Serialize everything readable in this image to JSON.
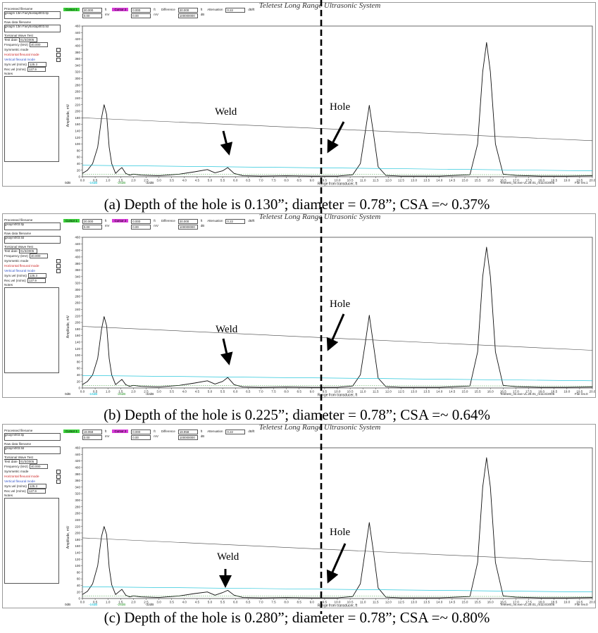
{
  "app_title": "Teletest Long Range Ultrasonic System",
  "annotations": {
    "weld": "Weld",
    "hole": "Hole"
  },
  "common_axes": {
    "xlabel": "Range from transducer, ft",
    "ylabel": "Amplitude, mV",
    "xlim": [
      0.0,
      20.0
    ],
    "ylim": [
      0,
      460
    ],
    "xticks": [
      "0.0",
      "0.5",
      "1.0",
      "1.5",
      "2.0",
      "2.5",
      "3.0",
      "3.5",
      "4.0",
      "4.5",
      "5.0",
      "5.5",
      "6.0",
      "6.5",
      "7.0",
      "7.5",
      "8.0",
      "8.5",
      "9.0",
      "9.5",
      "10.0",
      "10.5",
      "11.0",
      "11.5",
      "12.0",
      "12.5",
      "13.0",
      "13.5",
      "14.0",
      "14.5",
      "15.0",
      "15.5",
      "16.0",
      "16.5",
      "17.0",
      "17.5",
      "18.0",
      "18.5",
      "19.0",
      "19.5",
      "20.0"
    ],
    "yticks": [
      "0",
      "20",
      "40",
      "60",
      "80",
      "100",
      "120",
      "140",
      "160",
      "180",
      "200",
      "220",
      "240",
      "260",
      "280",
      "300",
      "320",
      "340",
      "360",
      "380",
      "400",
      "420",
      "440",
      "460"
    ]
  },
  "panels": [
    {
      "caption": "(a) Depth of the hole is 0.130”; diameter = 0.78”; CSA =~ 0.37%",
      "sidebar": {
        "processed_label": "Processed filename",
        "processed_value": "jpsagm 13in Fairy5ostapl003.tlp",
        "raw_label": "Raw data filename",
        "raw_value": "jpsagm 13in Fairy5ostapl003.tld",
        "wave_label": "Torsional Wave Test",
        "test_date_label": "Test date",
        "test_date": "01/3/2005",
        "freq_label": "Frequency (kHz)",
        "freq": "40.000",
        "sym_label": "Symmetric mode",
        "hflex_label": "Horizontal flexural mode",
        "vflex_label": "Vertical flexural mode",
        "symvel_label": "Sym.vel (m/ms)",
        "symvel": "125.3",
        "recvel_label": "Rec.vel (m/ms)",
        "recvel": "127.9",
        "notes_label": "Notes"
      },
      "cursorbar": {
        "cursor1": "Cursor 1",
        "c1_ft": "20.000",
        "c1_mv": "0.00",
        "cursor2": "Cursor 2",
        "c2_ft": "0.000",
        "c2_mv": "0.00",
        "diff_label": "Difference",
        "diff_ft": "20.000",
        "diff_mv": "100000000",
        "att_label": "Attenuation",
        "att": "0.22",
        "att_unit": "dB/ft",
        "u_ft": "ft",
        "u_mv": "mV",
        "u_db": "dB"
      },
      "status": {
        "s1": "0dB",
        "s2": "-16dB",
        "s3": "-26dB",
        "s4": "-32dB",
        "version": "Teletest_ml.exe v1.29.01_m11/4/2005",
        "file_rev": "File rev.1"
      },
      "chart_data": {
        "type": "line",
        "xlim": [
          0.0,
          20.0
        ],
        "ylim": [
          0,
          460
        ],
        "xlabel": "Range from transducer, ft",
        "ylabel": "Amplitude, mV",
        "series": [
          {
            "x": [
              0.0,
              0.2,
              0.4,
              0.6,
              0.75,
              0.85,
              0.95,
              1.05,
              1.15,
              1.3,
              1.45,
              1.55,
              1.7,
              1.85,
              2.0,
              2.3,
              3.0,
              3.8,
              4.4,
              4.9,
              5.2,
              5.5,
              5.7,
              5.95,
              6.3,
              7.0,
              8.0,
              9.0,
              10.0,
              10.6,
              10.9,
              11.1,
              11.25,
              11.4,
              11.6,
              11.9,
              12.5,
              14.0,
              15.2,
              15.5,
              15.7,
              15.85,
              16.0,
              16.2,
              16.5,
              17.0,
              18.0,
              19.0,
              20.0
            ],
            "y": [
              10,
              20,
              40,
              90,
              180,
              220,
              190,
              90,
              40,
              10,
              22,
              28,
              10,
              5,
              8,
              5,
              3,
              8,
              15,
              22,
              12,
              18,
              28,
              10,
              3,
              2,
              3,
              2,
              2,
              6,
              40,
              140,
              218,
              140,
              30,
              4,
              2,
              2,
              6,
              100,
              320,
              410,
              320,
              100,
              8,
              4,
              2,
              2,
              3
            ]
          },
          {
            "x": [
              0.0,
              20.0
            ],
            "y": [
              180,
              110
            ]
          },
          {
            "x": [
              0.0,
              20.0
            ],
            "y": [
              35,
              18
            ]
          },
          {
            "x": [
              0.0,
              20.0
            ],
            "y": [
              8,
              6
            ]
          }
        ]
      }
    },
    {
      "caption": "(b) Depth of the hole is 0.225”; diameter = 0.78”; CSA =~ 0.64%",
      "sidebar": {
        "processed_label": "Processed filename",
        "processed_value": "jpsaym003.tlp",
        "raw_label": "Raw data filename",
        "raw_value": "jpsaym003.tld",
        "wave_label": "Torsional Wave Test",
        "test_date_label": "Test date",
        "test_date": "01/3/2005",
        "freq_label": "Frequency (kHz)",
        "freq": "40.000",
        "sym_label": "Symmetric mode",
        "hflex_label": "Horizontal flexural mode",
        "vflex_label": "Vertical flexural mode",
        "symvel_label": "Sym.vel (m/ms)",
        "symvel": "125.3",
        "recvel_label": "Rec.vel (m/ms)",
        "recvel": "127.9",
        "notes_label": "Notes"
      },
      "cursorbar": {
        "cursor1": "Cursor 1",
        "c1_ft": "20.000",
        "c1_mv": "0.00",
        "cursor2": "Cursor 2",
        "c2_ft": "0.000",
        "c2_mv": "0.00",
        "diff_label": "Difference",
        "diff_ft": "20.000",
        "diff_mv": "100000000",
        "att_label": "Attenuation",
        "att": "0.22",
        "att_unit": "dB/ft",
        "u_ft": "ft",
        "u_mv": "mV",
        "u_db": "dB"
      },
      "status": {
        "s1": "0dB",
        "s2": "-16dB",
        "s3": "-26dB",
        "s4": "-32dB",
        "version": "Teletest_ml.exe v1.29.01_m11/4/2005",
        "file_rev": "File rev.0"
      },
      "chart_data": {
        "type": "line",
        "xlim": [
          0.0,
          20.0
        ],
        "ylim": [
          0,
          460
        ],
        "xlabel": "Range from transducer, ft",
        "ylabel": "Amplitude, mV",
        "series": [
          {
            "x": [
              0.0,
              0.2,
              0.4,
              0.6,
              0.75,
              0.85,
              0.95,
              1.05,
              1.15,
              1.3,
              1.45,
              1.55,
              1.7,
              1.85,
              2.0,
              2.3,
              3.0,
              3.8,
              4.4,
              4.9,
              5.2,
              5.5,
              5.7,
              5.95,
              6.3,
              7.0,
              8.0,
              9.0,
              10.0,
              10.6,
              10.9,
              11.1,
              11.25,
              11.4,
              11.6,
              11.9,
              12.5,
              14.0,
              15.2,
              15.5,
              15.7,
              15.85,
              16.0,
              16.2,
              16.5,
              17.0,
              18.0,
              19.0,
              20.0
            ],
            "y": [
              10,
              20,
              40,
              90,
              180,
              218,
              190,
              90,
              40,
              10,
              20,
              26,
              10,
              5,
              8,
              5,
              3,
              8,
              15,
              22,
              12,
              20,
              32,
              10,
              3,
              2,
              3,
              2,
              2,
              6,
              40,
              140,
              222,
              140,
              30,
              4,
              2,
              2,
              6,
              110,
              340,
              430,
              340,
              110,
              8,
              4,
              2,
              2,
              3
            ]
          },
          {
            "x": [
              0.0,
              20.0
            ],
            "y": [
              188,
              115
            ]
          },
          {
            "x": [
              0.0,
              20.0
            ],
            "y": [
              38,
              22
            ]
          },
          {
            "x": [
              0.0,
              20.0
            ],
            "y": [
              8,
              6
            ]
          }
        ]
      }
    },
    {
      "caption": "(c) Depth of the hole is 0.280”; diameter = 0.78”; CSA =~ 0.80%",
      "sidebar": {
        "processed_label": "Processed filename",
        "processed_value": "jpsaym003.tlp",
        "raw_label": "Raw data filename",
        "raw_value": "jpsaym003.tld",
        "wave_label": "Torsional Wave Test",
        "test_date_label": "Test date",
        "test_date": "01/3/2005",
        "freq_label": "Frequency (kHz)",
        "freq": "40.000",
        "sym_label": "Symmetric mode",
        "hflex_label": "Horizontal flexural mode",
        "vflex_label": "Vertical flexural mode",
        "symvel_label": "Sym.vel (m/ms)",
        "symvel": "125.3",
        "recvel_label": "Rec.vel (m/ms)",
        "recvel": "127.9",
        "notes_label": "Notes"
      },
      "cursorbar": {
        "cursor1": "Cursor 1",
        "c1_ft": "19.958",
        "c1_mv": "0.00",
        "cursor2": "Cursor 2",
        "c2_ft": "0.000",
        "c2_mv": "0.00",
        "diff_label": "Difference",
        "diff_ft": "19.958",
        "diff_mv": "100000000",
        "att_label": "Attenuation",
        "att": "0.22",
        "att_unit": "dB/ft",
        "u_ft": "ft",
        "u_mv": "mV",
        "u_db": "dB"
      },
      "status": {
        "s1": "0dB",
        "s2": "-16dB",
        "s3": "-26dB",
        "s4": "-32dB",
        "version": "Teletest_ml.exe v1.29.01_m11/4/2005",
        "file_rev": "File rev.0"
      },
      "chart_data": {
        "type": "line",
        "xlim": [
          0.0,
          20.0
        ],
        "ylim": [
          0,
          460
        ],
        "xlabel": "Range from transducer, ft",
        "ylabel": "Amplitude, mV",
        "series": [
          {
            "x": [
              0.0,
              0.2,
              0.4,
              0.6,
              0.75,
              0.85,
              0.95,
              1.05,
              1.15,
              1.3,
              1.45,
              1.55,
              1.7,
              1.85,
              2.0,
              2.3,
              3.0,
              3.8,
              4.4,
              4.9,
              5.2,
              5.5,
              5.7,
              5.95,
              6.3,
              7.0,
              8.0,
              9.0,
              10.0,
              10.6,
              10.9,
              11.1,
              11.25,
              11.4,
              11.6,
              11.9,
              12.5,
              14.0,
              15.2,
              15.5,
              15.7,
              15.85,
              16.0,
              16.2,
              16.5,
              17.0,
              18.0,
              19.0,
              20.0
            ],
            "y": [
              12,
              22,
              45,
              100,
              190,
              220,
              195,
              95,
              42,
              12,
              22,
              28,
              10,
              5,
              8,
              5,
              3,
              8,
              15,
              20,
              10,
              18,
              25,
              10,
              3,
              2,
              3,
              2,
              2,
              6,
              45,
              150,
              232,
              150,
              32,
              4,
              2,
              2,
              6,
              110,
              340,
              430,
              340,
              110,
              8,
              4,
              2,
              2,
              3
            ]
          },
          {
            "x": [
              0.0,
              20.0
            ],
            "y": [
              185,
              112
            ]
          },
          {
            "x": [
              0.0,
              20.0
            ],
            "y": [
              36,
              20
            ]
          },
          {
            "x": [
              0.0,
              20.0
            ],
            "y": [
              8,
              6
            ]
          }
        ]
      }
    }
  ]
}
